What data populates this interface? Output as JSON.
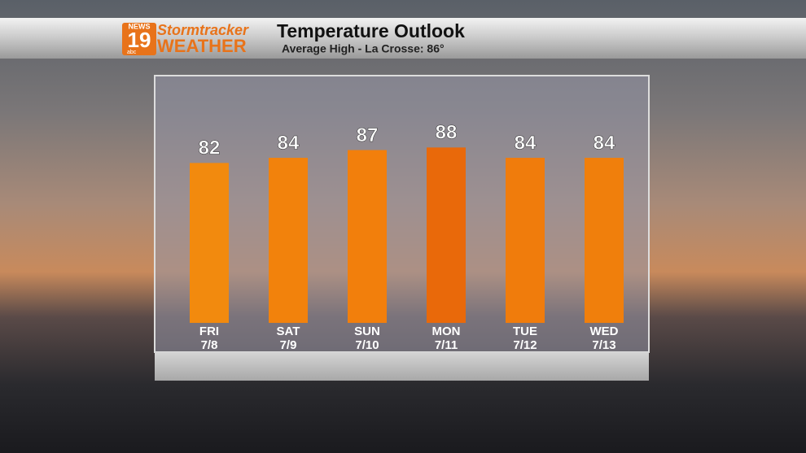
{
  "logo": {
    "station": "NEWS",
    "channel": "19",
    "network": "abc",
    "brand": "Stormtracker",
    "brand_sub": "WEATHER"
  },
  "chart_data": {
    "type": "bar",
    "title": "Temperature Outlook",
    "subtitle": "Average High - La Crosse: 86°",
    "categories": [
      "FRI",
      "SAT",
      "SUN",
      "MON",
      "TUE",
      "WED"
    ],
    "dates": [
      "7/8",
      "7/9",
      "7/10",
      "7/11",
      "7/12",
      "7/13"
    ],
    "values": [
      82,
      84,
      87,
      88,
      84,
      84
    ],
    "colors": [
      "#f28a0e",
      "#f2820c",
      "#f27f0c",
      "#e9690a",
      "#f07c0c",
      "#f07f0c"
    ],
    "ylim": [
      20,
      90
    ]
  }
}
